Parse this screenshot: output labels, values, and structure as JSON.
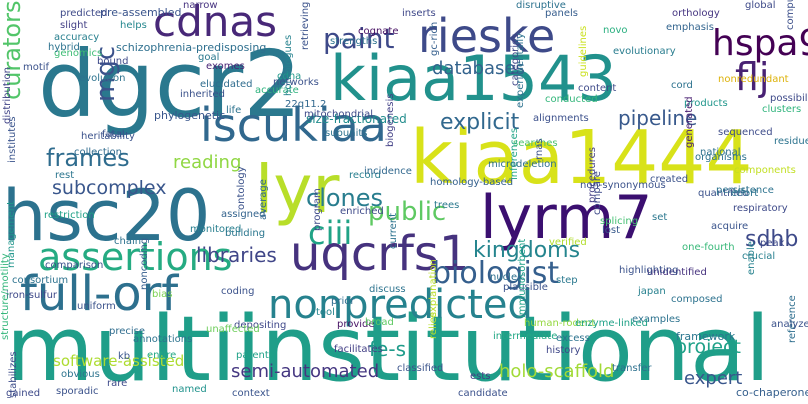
{
  "title": "",
  "words": [
    {
      "text": "multiinstitutional",
      "color": "#1f9e89"
    },
    {
      "text": "dgcr2",
      "color": "#2a788e"
    },
    {
      "text": "kiaa1543",
      "color": "#21918c"
    },
    {
      "text": "kiaa1444",
      "color": "#d8e219"
    },
    {
      "text": "hsc20",
      "color": "#2c728e"
    },
    {
      "text": "lyr",
      "color": "#b8de29"
    },
    {
      "text": "lyrm7",
      "color": "#3b0f70"
    },
    {
      "text": "uqcrfs1",
      "color": "#46327e"
    },
    {
      "text": "cdnas",
      "color": "#482878"
    },
    {
      "text": "rieske",
      "color": "#3e4a89"
    },
    {
      "text": "hspa9",
      "color": "#440154"
    },
    {
      "text": "flj",
      "color": "#482173"
    },
    {
      "text": "iscukiaa",
      "color": "#31688e"
    },
    {
      "text": "full-orf",
      "color": "#2d708e"
    },
    {
      "text": "nonpredicted",
      "color": "#26828e"
    },
    {
      "text": "assertions",
      "color": "#25ab82"
    },
    {
      "text": "biologist",
      "color": "#355f8d"
    },
    {
      "text": "paint",
      "color": "#3e4989"
    },
    {
      "text": "curators",
      "color": "#52c569"
    },
    {
      "text": "frames",
      "color": "#2f6c8e"
    },
    {
      "text": "public",
      "color": "#5ec962"
    },
    {
      "text": "explicit",
      "color": "#31688e"
    },
    {
      "text": "clones",
      "color": "#287d8e"
    },
    {
      "text": "ciii",
      "color": "#20a386"
    },
    {
      "text": "mgc",
      "color": "#3b528b"
    },
    {
      "text": "kingdoms",
      "color": "#25858e"
    },
    {
      "text": "sdhb",
      "color": "#3e4a89"
    },
    {
      "text": "libraries",
      "color": "#404688"
    },
    {
      "text": "pipeline",
      "color": "#38598c"
    },
    {
      "text": "databases",
      "color": "#33638d"
    },
    {
      "text": "subcomplex",
      "color": "#39568c"
    },
    {
      "text": "reading",
      "color": "#90d743"
    },
    {
      "text": "project",
      "color": "#1fa188"
    },
    {
      "text": "expert",
      "color": "#39568c"
    },
    {
      "text": "fe-s",
      "color": "#1e9b8a"
    },
    {
      "text": "semi-automated",
      "color": "#453781"
    },
    {
      "text": "holo-scaffold",
      "color": "#a2da37"
    },
    {
      "text": "software-assisted",
      "color": "#addc30"
    },
    {
      "text": "framework",
      "color": "#2a768e"
    },
    {
      "text": "co-chaperone",
      "color": "#355f8d"
    },
    {
      "text": "schizophrenia-predisposing",
      "color": "#2e6f8e"
    },
    {
      "text": "pre-assembled",
      "color": "#3a548c"
    },
    {
      "text": "predicted",
      "color": "#3e4a89"
    },
    {
      "text": "slight",
      "color": "#423f85"
    },
    {
      "text": "accuracy",
      "color": "#277f8e"
    },
    {
      "text": "genomics",
      "color": "#3dbc74"
    },
    {
      "text": "helps",
      "color": "#24878e"
    },
    {
      "text": "exomes",
      "color": "#482475"
    },
    {
      "text": "goal",
      "color": "#2a788e"
    },
    {
      "text": "narrow",
      "color": "#46337f"
    },
    {
      "text": "retrieving",
      "color": "#3b528b"
    },
    {
      "text": "strengths",
      "color": "#2c728e"
    },
    {
      "text": "cognate",
      "color": "#471063"
    },
    {
      "text": "gc-rich",
      "color": "#355f8d"
    },
    {
      "text": "inserts",
      "color": "#3f4889"
    },
    {
      "text": "panels",
      "color": "#365d8d"
    },
    {
      "text": "orthology",
      "color": "#453581"
    },
    {
      "text": "emphasis",
      "color": "#32648e"
    },
    {
      "text": "nonredundant",
      "color": "#ddb20a"
    },
    {
      "text": "computational",
      "color": "#3c4f8a"
    },
    {
      "text": "clusters",
      "color": "#2fb47c"
    },
    {
      "text": "categories",
      "color": "#3f4788"
    },
    {
      "text": "evolutionary",
      "color": "#287c8e"
    },
    {
      "text": "phylogenetic",
      "color": "#39568c"
    },
    {
      "text": "accurate",
      "color": "#2db27d"
    },
    {
      "text": "cdna",
      "color": "#1f998a"
    },
    {
      "text": "22q11.2",
      "color": "#31688e"
    },
    {
      "text": "heritability",
      "color": "#3b528b"
    },
    {
      "text": "collection",
      "color": "#2f6b8e"
    },
    {
      "text": "size-fractionated",
      "color": "#228d8d"
    },
    {
      "text": "homologues",
      "color": "#26828e"
    },
    {
      "text": "alignments",
      "color": "#3c508b"
    },
    {
      "text": "products",
      "color": "#1f968b"
    },
    {
      "text": "searches",
      "color": "#4ac16d"
    },
    {
      "text": "record",
      "color": "#277e8e"
    },
    {
      "text": "biogenesis",
      "color": "#424086"
    },
    {
      "text": "inferences",
      "color": "#20a486"
    },
    {
      "text": "sequenced",
      "color": "#3e4c8a"
    },
    {
      "text": "national",
      "color": "#2d718e"
    },
    {
      "text": "components",
      "color": "#c2df23"
    },
    {
      "text": "residues",
      "color": "#2c738e"
    },
    {
      "text": "non-synonymous",
      "color": "#3b528b"
    },
    {
      "text": "microdeletion",
      "color": "#2d708e"
    },
    {
      "text": "procedures",
      "color": "#433e85"
    },
    {
      "text": "homology-based",
      "color": "#34608d"
    },
    {
      "text": "trees",
      "color": "#2a788e"
    },
    {
      "text": "set",
      "color": "#2a778e"
    },
    {
      "text": "one-fourth",
      "color": "#37b878"
    },
    {
      "text": "monitored",
      "color": "#277e8e"
    },
    {
      "text": "ontology",
      "color": "#3b528b"
    },
    {
      "text": "assigned",
      "color": "#33638d"
    },
    {
      "text": "building",
      "color": "#2a768e"
    },
    {
      "text": "average",
      "color": "#31668e"
    },
    {
      "text": "management",
      "color": "#1f958b"
    },
    {
      "text": "consortium",
      "color": "#2c728e"
    },
    {
      "text": "iron-sulfur",
      "color": "#3e4989"
    },
    {
      "text": "uniform",
      "color": "#3b528b"
    },
    {
      "text": "bias",
      "color": "#7ad151"
    },
    {
      "text": "noncoding",
      "color": "#355e8d"
    },
    {
      "text": "annotations",
      "color": "#2c738e"
    },
    {
      "text": "entire",
      "color": "#22a785"
    },
    {
      "text": "depositing",
      "color": "#3f4889"
    },
    {
      "text": "parents",
      "color": "#1fa187"
    },
    {
      "text": "classified",
      "color": "#3a538b"
    },
    {
      "text": "nucleic",
      "color": "#2d708e"
    },
    {
      "text": "plausible",
      "color": "#3b528b"
    },
    {
      "text": "examples",
      "color": "#2c728e"
    },
    {
      "text": "japan",
      "color": "#27808e"
    },
    {
      "text": "unidentified",
      "color": "#46327e"
    },
    {
      "text": "immunosorbent",
      "color": "#1fa188"
    },
    {
      "text": "gained",
      "color": "#3e4a89"
    },
    {
      "text": "named",
      "color": "#20928c"
    },
    {
      "text": "candidate",
      "color": "#3b518b"
    },
    {
      "text": "ests",
      "color": "#433d84"
    },
    {
      "text": "structure/motility",
      "color": "#32b67a"
    },
    {
      "text": "distribution",
      "color": "#414487"
    },
    {
      "text": "institutes",
      "color": "#3a548c"
    },
    {
      "text": "rest",
      "color": "#2b758e"
    },
    {
      "text": "reference",
      "color": "#2e6e8e"
    },
    {
      "text": "history",
      "color": "#3f4788"
    },
    {
      "text": "explanation",
      "color": "#bade28"
    },
    {
      "text": "relies",
      "color": "#b5de2b"
    },
    {
      "text": "human-rodent",
      "color": "#95d840"
    },
    {
      "text": "intermediate",
      "color": "#22a884"
    },
    {
      "text": "facilitates",
      "color": "#423f85"
    },
    {
      "text": "novo",
      "color": "#29af7f"
    },
    {
      "text": "guidelines",
      "color": "#cae11f"
    },
    {
      "text": "conducted",
      "color": "#32b67a"
    },
    {
      "text": "generated",
      "color": "#481f70"
    },
    {
      "text": "lost",
      "color": "#38598c"
    },
    {
      "text": "compare",
      "color": "#3e4a89"
    },
    {
      "text": "splicing",
      "color": "#43bf71"
    },
    {
      "text": "verified",
      "color": "#b2dd2d"
    },
    {
      "text": "current",
      "color": "#2c728e"
    },
    {
      "text": "tool",
      "color": "#25848e"
    },
    {
      "text": "prior",
      "color": "#2f6c8e"
    },
    {
      "text": "provide",
      "color": "#471365"
    },
    {
      "text": "broad",
      "color": "#5ec962"
    },
    {
      "text": "discuss",
      "color": "#2c738e"
    },
    {
      "text": "coding",
      "color": "#3b528b"
    },
    {
      "text": "unaffected",
      "color": "#6ccd5a"
    },
    {
      "text": "context",
      "color": "#3a548c"
    },
    {
      "text": "kb",
      "color": "#39568c"
    },
    {
      "text": "rare",
      "color": "#3e4a89"
    },
    {
      "text": "sporadic",
      "color": "#3b528b"
    },
    {
      "text": "obvious",
      "color": "#2c738e"
    },
    {
      "text": "stabilizes",
      "color": "#3d4d8a"
    },
    {
      "text": "excess",
      "color": "#2c728e"
    },
    {
      "text": "enzyme-linked",
      "color": "#1fa187"
    },
    {
      "text": "transfer",
      "color": "#2d708e"
    },
    {
      "text": "composed",
      "color": "#2c728e"
    },
    {
      "text": "analyzed",
      "color": "#3b528b"
    },
    {
      "text": "peak",
      "color": "#3e4989"
    },
    {
      "text": "crucial",
      "color": "#277f8e"
    },
    {
      "text": "enable",
      "color": "#26828e"
    },
    {
      "text": "acquire",
      "color": "#3a548c"
    },
    {
      "text": "respiratory",
      "color": "#3e4a89"
    },
    {
      "text": "quantified",
      "color": "#3b528b"
    },
    {
      "text": "persistence",
      "color": "#2c728e"
    },
    {
      "text": "precise",
      "color": "#2f6c8e"
    },
    {
      "text": "step",
      "color": "#2a788e"
    },
    {
      "text": "enriched",
      "color": "#3e4a89"
    },
    {
      "text": "chain",
      "color": "#2c728e"
    },
    {
      "text": "comparison",
      "color": "#3b528b"
    },
    {
      "text": "program",
      "color": "#3e4a89"
    },
    {
      "text": "incidence",
      "color": "#31688e"
    },
    {
      "text": "restriction",
      "color": "#1fa187"
    },
    {
      "text": "inherited",
      "color": "#3b528b"
    },
    {
      "text": "elucidated",
      "color": "#2f6c8e"
    },
    {
      "text": "mitochondrial",
      "color": "#3e4a89"
    },
    {
      "text": "subunits",
      "color": "#2c728e"
    },
    {
      "text": "created",
      "color": "#3b528b"
    },
    {
      "text": "organisms",
      "color": "#2c728e"
    },
    {
      "text": "global",
      "color": "#3e4a89"
    },
    {
      "text": "cord",
      "color": "#2c728e"
    },
    {
      "text": "fatal",
      "color": "#3b528b"
    },
    {
      "text": "hybrid",
      "color": "#2c728e"
    },
    {
      "text": "motif",
      "color": "#3b528b"
    },
    {
      "text": "evolution",
      "color": "#2c728e"
    },
    {
      "text": "bound",
      "color": "#3e4a89"
    },
    {
      "text": "life",
      "color": "#2c728e"
    },
    {
      "text": "networks",
      "color": "#3b528b"
    },
    {
      "text": "disruptive",
      "color": "#2c728e"
    },
    {
      "text": "possibility",
      "color": "#3e4a89"
    },
    {
      "text": "effort",
      "color": "#2c728e"
    },
    {
      "text": "highlighting",
      "color": "#3b528b"
    },
    {
      "text": "experimentally",
      "color": "#2c728e"
    },
    {
      "text": "content",
      "color": "#3e4a89"
    },
    {
      "text": "rnas",
      "color": "#3b528b"
    }
  ]
}
